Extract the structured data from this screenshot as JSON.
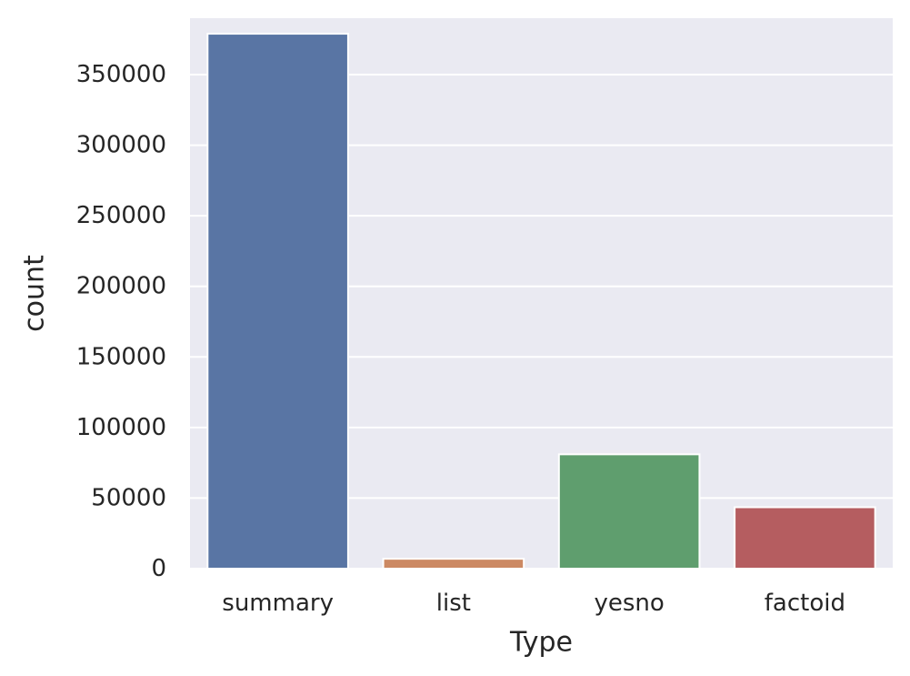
{
  "chart_data": {
    "type": "bar",
    "xlabel": "Type",
    "ylabel": "count",
    "categories": [
      "summary",
      "list",
      "yesno",
      "factoid"
    ],
    "values": [
      379000,
      7000,
      81000,
      43500
    ],
    "colors": [
      "#5975a4",
      "#cc8963",
      "#5f9e6e",
      "#b55d60"
    ],
    "ylim": [
      0,
      390000
    ],
    "yticks": [
      0,
      50000,
      100000,
      150000,
      200000,
      250000,
      300000,
      350000
    ],
    "ytick_labels": [
      "0",
      "50000",
      "100000",
      "150000",
      "200000",
      "250000",
      "300000",
      "350000"
    ],
    "grid": true,
    "background": "#eaeaf2"
  }
}
